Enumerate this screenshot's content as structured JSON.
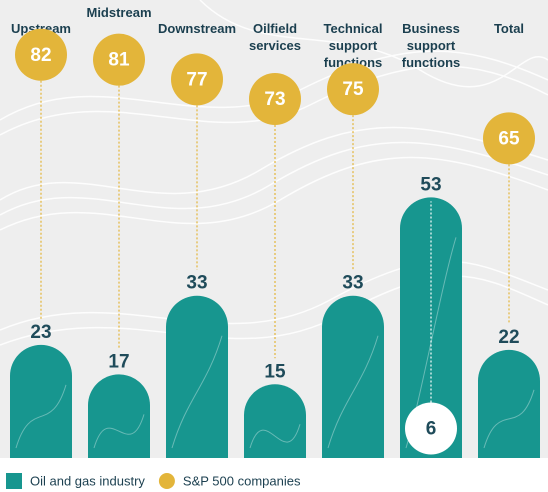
{
  "chart_data": {
    "type": "bar",
    "categories": [
      "Upstream",
      "Midstream",
      "Downstream",
      "Oilfield services",
      "Technical support functions",
      "Business support functions",
      "Total"
    ],
    "series": [
      {
        "name": "Oil and gas industry",
        "color": "#17968f",
        "values": [
          23,
          17,
          33,
          15,
          33,
          53,
          22
        ]
      },
      {
        "name": "S&P 500 companies",
        "color": "#e3b53a",
        "values": [
          82,
          81,
          77,
          73,
          75,
          6,
          65
        ]
      }
    ],
    "ylim": [
      0,
      85
    ],
    "legend": "bottom"
  }
}
